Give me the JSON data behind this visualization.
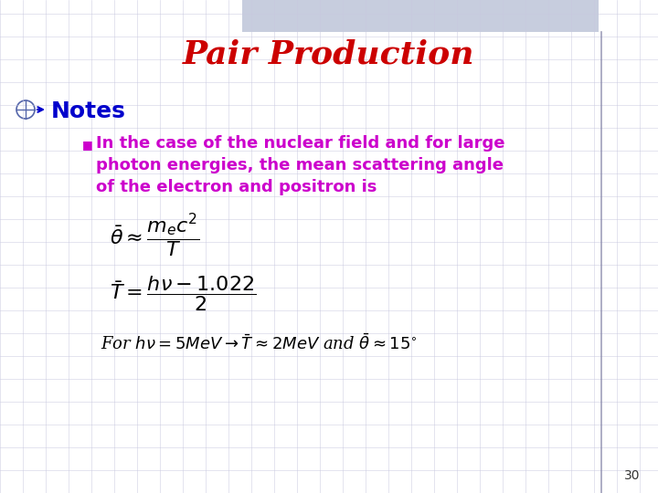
{
  "title": "Pair Production",
  "title_color": "#CC0000",
  "title_fontsize": 26,
  "bg_color": "#FFFFFF",
  "notes_label": "Notes",
  "notes_color": "#0000CC",
  "notes_fontsize": 18,
  "bullet_color": "#CC00CC",
  "bullet_text_line1": "In the case of the nuclear field and for large",
  "bullet_text_line2": "photon energies, the mean scattering angle",
  "bullet_text_line3": "of the electron and positron is",
  "eq1": "$\\bar{\\theta} \\approx \\dfrac{m_e c^2}{T}$",
  "eq2": "$\\bar{T} = \\dfrac{h\\nu -1.022}{2}$",
  "eq3": "For $h\\nu = 5MeV \\rightarrow \\bar{T} \\approx 2MeV$ and $\\bar{\\theta} \\approx 15^{\\circ}$",
  "page_number": "30",
  "top_bar_color": "#B0B8D0",
  "right_line_color": "#8888AA",
  "grid_color": "#C8C8E0"
}
